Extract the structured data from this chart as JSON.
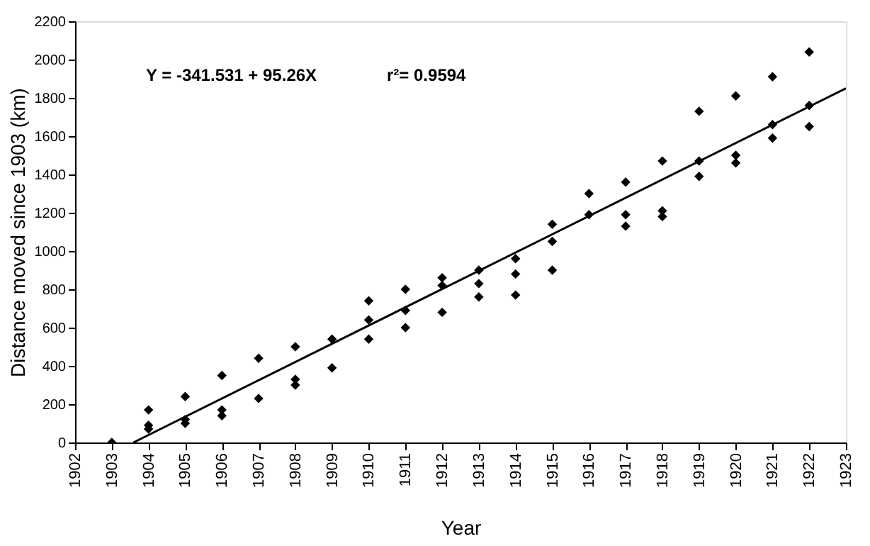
{
  "chart_data": {
    "type": "scatter",
    "xlabel": "Year",
    "ylabel": "Distance moved since 1903 (km)",
    "annotations": [
      "Y = -341.531 + 95.26X",
      "r²= 0.9594"
    ],
    "xlim": [
      1902,
      1923
    ],
    "xticks": [
      1902,
      1903,
      1904,
      1905,
      1906,
      1907,
      1908,
      1909,
      1910,
      1911,
      1912,
      1913,
      1914,
      1915,
      1916,
      1917,
      1918,
      1919,
      1920,
      1921,
      1922,
      1923
    ],
    "ylim": [
      0,
      2200
    ],
    "yticks": [
      0,
      200,
      400,
      600,
      800,
      1000,
      1200,
      1400,
      1600,
      1800,
      2000,
      2200
    ],
    "grid": false,
    "series": [
      {
        "marker": "diamond",
        "color": "#000000",
        "x": [
          1903,
          1904,
          1904,
          1904,
          1905,
          1905,
          1905,
          1906,
          1906,
          1906,
          1907,
          1907,
          1908,
          1908,
          1908,
          1909,
          1909,
          1910,
          1910,
          1910,
          1911,
          1911,
          1911,
          1912,
          1912,
          1912,
          1913,
          1913,
          1913,
          1914,
          1914,
          1914,
          1915,
          1915,
          1915,
          1916,
          1916,
          1917,
          1917,
          1917,
          1918,
          1918,
          1918,
          1919,
          1919,
          1919,
          1920,
          1920,
          1920,
          1921,
          1921,
          1921,
          1922,
          1922,
          1922
        ],
        "values": [
          0,
          170,
          90,
          70,
          240,
          120,
          100,
          350,
          170,
          140,
          440,
          230,
          500,
          330,
          300,
          540,
          390,
          740,
          640,
          540,
          800,
          690,
          600,
          860,
          820,
          680,
          900,
          830,
          760,
          960,
          880,
          770,
          1140,
          1050,
          900,
          1300,
          1190,
          1360,
          1190,
          1130,
          1470,
          1210,
          1180,
          1730,
          1470,
          1390,
          1810,
          1500,
          1460,
          1910,
          1660,
          1590,
          2040,
          1760,
          1650
        ]
      },
      {
        "type": "line",
        "marker": "none",
        "color": "#000000",
        "x": [
          1903.59,
          1923
        ],
        "values": [
          0,
          1850
        ]
      }
    ]
  }
}
